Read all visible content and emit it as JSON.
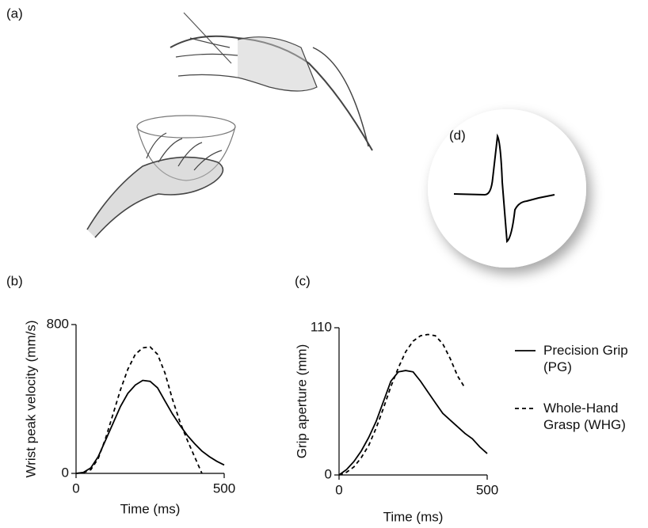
{
  "panel_labels": [
    "(a)",
    "(b)",
    "(c)",
    "(d)"
  ],
  "chart_data": [
    {
      "type": "line",
      "xlabel": "Time (ms)",
      "ylabel": "Wrist peak velocity (mm/s)",
      "x": [
        0,
        25,
        50,
        75,
        100,
        125,
        150,
        175,
        200,
        225,
        250,
        275,
        300,
        325,
        350,
        375,
        400,
        425,
        450,
        475,
        500
      ],
      "series": [
        {
          "color": "#000000",
          "dash": false,
          "values": [
            0,
            5,
            30,
            90,
            180,
            270,
            360,
            430,
            475,
            500,
            495,
            460,
            390,
            320,
            260,
            205,
            160,
            120,
            90,
            65,
            45
          ]
        },
        {
          "color": "#000000",
          "dash": true,
          "values": [
            0,
            3,
            20,
            80,
            190,
            320,
            450,
            560,
            640,
            675,
            680,
            640,
            540,
            400,
            280,
            180,
            90,
            0,
            null,
            null,
            null
          ]
        }
      ],
      "xlim": [
        0,
        500
      ],
      "ylim": [
        0,
        800
      ],
      "xticks": [
        0,
        500
      ],
      "yticks": [
        0,
        800
      ]
    },
    {
      "type": "line",
      "xlabel": "Time (ms)",
      "ylabel": "Grip aperture (mm)",
      "x": [
        0,
        25,
        50,
        75,
        100,
        125,
        150,
        175,
        200,
        225,
        250,
        275,
        300,
        325,
        350,
        375,
        400,
        425,
        450,
        475,
        500
      ],
      "series": [
        {
          "name": "Precision Grip (PG)",
          "color": "#000000",
          "dash": false,
          "values": [
            0,
            4,
            10,
            18,
            28,
            40,
            55,
            70,
            77,
            78,
            77,
            70,
            62,
            54,
            46,
            41,
            36,
            31,
            27,
            21,
            16
          ]
        },
        {
          "name": "Whole-Hand Grasp (WHG)",
          "color": "#000000",
          "dash": true,
          "values": [
            0,
            2,
            6,
            13,
            22,
            35,
            50,
            66,
            80,
            92,
            100,
            104,
            105,
            104,
            98,
            87,
            74,
            65,
            null,
            null,
            null
          ]
        }
      ],
      "xlim": [
        0,
        500
      ],
      "ylim": [
        0,
        110
      ],
      "xticks": [
        0,
        500
      ],
      "yticks": [
        0,
        110
      ],
      "legend": "right"
    }
  ]
}
